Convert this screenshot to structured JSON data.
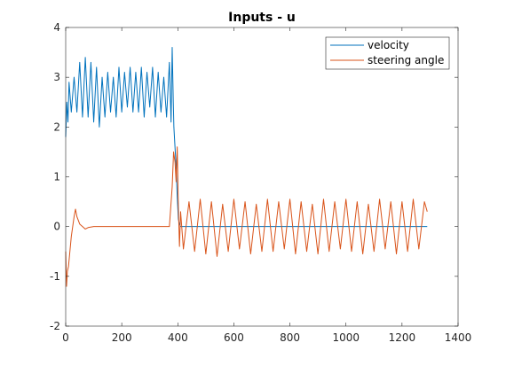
{
  "chart_data": {
    "type": "line",
    "title": "Inputs - u",
    "xlabel": "",
    "ylabel": "",
    "xlim": [
      0,
      1400
    ],
    "ylim": [
      -2,
      4
    ],
    "xticks": [
      0,
      200,
      400,
      600,
      800,
      1000,
      1200,
      1400
    ],
    "yticks": [
      -2,
      -1,
      0,
      1,
      2,
      3,
      4
    ],
    "grid": false,
    "legend_position": "top-right",
    "series": [
      {
        "name": "velocity",
        "color": "#0072BD",
        "x": [
          0,
          4,
          8,
          12,
          20,
          30,
          40,
          50,
          60,
          70,
          80,
          90,
          100,
          110,
          120,
          130,
          140,
          150,
          160,
          170,
          180,
          190,
          200,
          210,
          220,
          230,
          240,
          250,
          260,
          270,
          280,
          290,
          300,
          310,
          320,
          330,
          340,
          350,
          360,
          370,
          376,
          380,
          384,
          386,
          390,
          394,
          398,
          402,
          406,
          410,
          420,
          500,
          600,
          700,
          800,
          900,
          1000,
          1100,
          1200,
          1290
        ],
        "values": [
          1.8,
          2.5,
          2.1,
          2.9,
          2.3,
          3.0,
          2.3,
          3.3,
          2.2,
          3.4,
          2.2,
          3.3,
          2.1,
          3.2,
          2.0,
          3.0,
          2.2,
          3.1,
          2.3,
          3.0,
          2.2,
          3.2,
          2.3,
          3.1,
          2.4,
          3.2,
          2.3,
          3.1,
          2.3,
          3.2,
          2.2,
          3.1,
          2.4,
          3.2,
          2.2,
          3.1,
          2.3,
          3.0,
          2.2,
          3.3,
          2.1,
          3.6,
          2.5,
          2.0,
          1.6,
          1.2,
          0.6,
          0.15,
          0.05,
          0.0,
          0.0,
          0.0,
          0.0,
          0.0,
          0.0,
          0.0,
          0.0,
          0.0,
          0.0,
          0.0
        ]
      },
      {
        "name": "steering angle",
        "color": "#D95319",
        "x": [
          0,
          3,
          6,
          10,
          15,
          20,
          25,
          30,
          35,
          40,
          50,
          60,
          70,
          80,
          100,
          150,
          200,
          250,
          300,
          350,
          370,
          380,
          385,
          390,
          394,
          398,
          402,
          406,
          410,
          420,
          440,
          460,
          480,
          500,
          520,
          540,
          560,
          580,
          600,
          620,
          640,
          660,
          680,
          700,
          720,
          740,
          760,
          780,
          800,
          820,
          840,
          860,
          880,
          900,
          920,
          940,
          960,
          980,
          1000,
          1020,
          1040,
          1060,
          1080,
          1100,
          1120,
          1140,
          1160,
          1180,
          1200,
          1220,
          1240,
          1260,
          1280,
          1290
        ],
        "values": [
          -0.5,
          -1.2,
          -0.9,
          -0.8,
          -0.5,
          -0.2,
          0.0,
          0.2,
          0.35,
          0.2,
          0.05,
          0.0,
          -0.05,
          -0.02,
          0.0,
          0.0,
          0.0,
          0.0,
          0.0,
          0.0,
          0.0,
          0.8,
          1.5,
          1.3,
          0.9,
          1.6,
          0.4,
          -0.4,
          0.3,
          -0.45,
          0.5,
          -0.5,
          0.55,
          -0.55,
          0.5,
          -0.6,
          0.45,
          -0.5,
          0.55,
          -0.45,
          0.5,
          -0.55,
          0.45,
          -0.5,
          0.55,
          -0.5,
          0.5,
          -0.45,
          0.55,
          -0.55,
          0.5,
          -0.5,
          0.45,
          -0.55,
          0.55,
          -0.5,
          0.5,
          -0.45,
          0.55,
          -0.5,
          0.5,
          -0.55,
          0.45,
          -0.5,
          0.55,
          -0.45,
          0.5,
          -0.55,
          0.5,
          -0.5,
          0.55,
          -0.45,
          0.5,
          0.3
        ]
      }
    ]
  }
}
